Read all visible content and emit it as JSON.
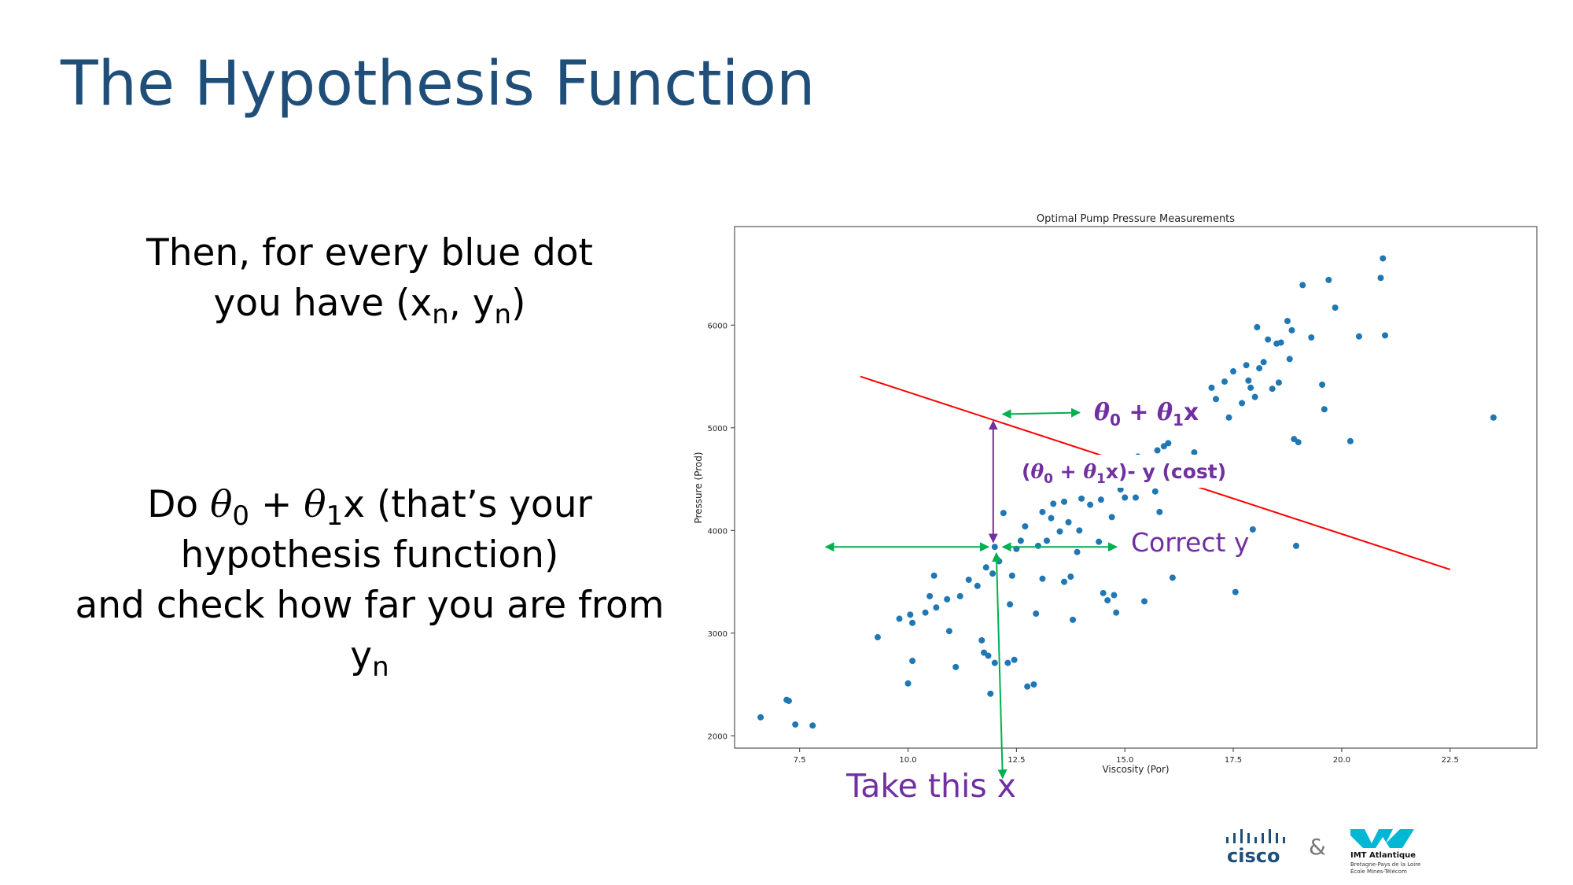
{
  "slide": {
    "title": "The Hypothesis Function",
    "para1": {
      "line1": "Then, for every blue dot",
      "line2_pre": "you have (x",
      "sub_n": "n",
      "line2_mid": ", y",
      "line2_post": ")"
    },
    "para2": {
      "do": "Do ",
      "theta": "θ",
      "sub0": "0",
      "plus": " + ",
      "sub1": "1",
      "rest": "x (that’s your",
      "line2": "hypothesis function)",
      "line3": "and check how far you are from",
      "y": "y"
    }
  },
  "annotations": {
    "hyp": {
      "theta": "θ",
      "sub0": "0",
      "plus": " + ",
      "sub1": "1",
      "x": "x"
    },
    "cost": {
      "open": "(",
      "theta": "θ",
      "sub0": "0",
      "plus": " + ",
      "sub1": "1",
      "close": "x)- y (cost)"
    },
    "correct_y": "Correct y",
    "take_x": "Take this x",
    "colors": {
      "purple": "#7030a0",
      "green": "#00b050",
      "red": "#ff0000",
      "dot": "#1f77b4"
    }
  },
  "logos": {
    "cisco": "cisco",
    "amp": "&",
    "imt_name": "IMT Atlantique",
    "imt_line1": "Bretagne-Pays de la Loire",
    "imt_line2": "École Mines-Télécom"
  },
  "chart_data": {
    "type": "scatter",
    "title": "Optimal Pump Pressure Measurements",
    "xlabel": "Viscosity (Por)",
    "ylabel": "Pressure (Prod)",
    "xlim": [
      6.0,
      24.5
    ],
    "ylim": [
      1880,
      6960
    ],
    "xticks": [
      "7.5",
      "10.0",
      "12.5",
      "15.0",
      "17.5",
      "20.0",
      "22.5"
    ],
    "yticks": [
      "2000",
      "3000",
      "4000",
      "5000",
      "6000"
    ],
    "grid": false,
    "hypothesis_line": {
      "x": [
        8.9,
        22.5
      ],
      "y": [
        5500,
        3620
      ]
    },
    "highlight_point": {
      "x": 12.0,
      "y": 3840,
      "hyp_y": 5110
    },
    "points": [
      [
        6.6,
        2180
      ],
      [
        7.2,
        2350
      ],
      [
        7.25,
        2340
      ],
      [
        7.4,
        2110
      ],
      [
        7.8,
        2100
      ],
      [
        9.3,
        2960
      ],
      [
        9.8,
        3140
      ],
      [
        10.0,
        2510
      ],
      [
        10.1,
        2730
      ],
      [
        10.05,
        3180
      ],
      [
        10.1,
        3100
      ],
      [
        10.4,
        3200
      ],
      [
        10.5,
        3360
      ],
      [
        10.6,
        3560
      ],
      [
        10.65,
        3250
      ],
      [
        10.9,
        3330
      ],
      [
        10.95,
        3020
      ],
      [
        11.1,
        2670
      ],
      [
        11.2,
        3360
      ],
      [
        11.4,
        3520
      ],
      [
        11.6,
        3460
      ],
      [
        11.7,
        2930
      ],
      [
        11.75,
        2810
      ],
      [
        11.8,
        3640
      ],
      [
        11.85,
        2780
      ],
      [
        11.9,
        2410
      ],
      [
        11.95,
        3580
      ],
      [
        12.0,
        2710
      ],
      [
        12.05,
        3720
      ],
      [
        12.1,
        3700
      ],
      [
        12.2,
        4170
      ],
      [
        12.3,
        2710
      ],
      [
        12.35,
        3280
      ],
      [
        12.4,
        3560
      ],
      [
        12.45,
        2740
      ],
      [
        12.5,
        3820
      ],
      [
        12.6,
        3900
      ],
      [
        12.7,
        4040
      ],
      [
        12.75,
        2480
      ],
      [
        12.9,
        2500
      ],
      [
        12.95,
        3190
      ],
      [
        13.0,
        3850
      ],
      [
        13.1,
        3530
      ],
      [
        13.1,
        4180
      ],
      [
        13.2,
        3900
      ],
      [
        13.3,
        4120
      ],
      [
        13.35,
        4260
      ],
      [
        13.5,
        3990
      ],
      [
        13.6,
        4280
      ],
      [
        13.6,
        3500
      ],
      [
        13.7,
        4080
      ],
      [
        13.75,
        3550
      ],
      [
        13.8,
        3130
      ],
      [
        13.9,
        3790
      ],
      [
        13.95,
        4000
      ],
      [
        14.0,
        4310
      ],
      [
        14.2,
        4250
      ],
      [
        14.4,
        3890
      ],
      [
        14.45,
        4300
      ],
      [
        14.5,
        3390
      ],
      [
        14.6,
        3320
      ],
      [
        14.7,
        4130
      ],
      [
        14.75,
        3370
      ],
      [
        14.8,
        3200
      ],
      [
        14.9,
        4400
      ],
      [
        15.0,
        4320
      ],
      [
        15.1,
        4450
      ],
      [
        15.25,
        4320
      ],
      [
        15.3,
        4720
      ],
      [
        15.45,
        3310
      ],
      [
        15.5,
        4580
      ],
      [
        15.6,
        4460
      ],
      [
        15.7,
        4380
      ],
      [
        15.75,
        4780
      ],
      [
        15.8,
        4180
      ],
      [
        15.9,
        4820
      ],
      [
        16.0,
        4850
      ],
      [
        16.05,
        4500
      ],
      [
        16.1,
        3540
      ],
      [
        16.3,
        4590
      ],
      [
        16.6,
        4760
      ],
      [
        16.8,
        5100
      ],
      [
        17.0,
        5390
      ],
      [
        17.1,
        5280
      ],
      [
        17.3,
        5450
      ],
      [
        17.4,
        5100
      ],
      [
        17.5,
        5550
      ],
      [
        17.55,
        3400
      ],
      [
        17.7,
        5240
      ],
      [
        17.8,
        5610
      ],
      [
        17.85,
        5460
      ],
      [
        17.9,
        5390
      ],
      [
        17.95,
        4010
      ],
      [
        18.0,
        5300
      ],
      [
        18.05,
        5980
      ],
      [
        18.1,
        5580
      ],
      [
        18.2,
        5640
      ],
      [
        18.3,
        5860
      ],
      [
        18.4,
        5380
      ],
      [
        18.5,
        5820
      ],
      [
        18.55,
        5440
      ],
      [
        18.6,
        5830
      ],
      [
        18.75,
        6040
      ],
      [
        18.8,
        5670
      ],
      [
        18.85,
        5950
      ],
      [
        18.9,
        4890
      ],
      [
        18.95,
        3850
      ],
      [
        19.0,
        4860
      ],
      [
        19.1,
        6390
      ],
      [
        19.3,
        5880
      ],
      [
        19.55,
        5420
      ],
      [
        19.6,
        5180
      ],
      [
        19.7,
        6440
      ],
      [
        19.85,
        6170
      ],
      [
        20.2,
        4870
      ],
      [
        20.4,
        5890
      ],
      [
        20.9,
        6460
      ],
      [
        20.95,
        6650
      ],
      [
        21.0,
        5900
      ],
      [
        23.5,
        5100
      ]
    ]
  }
}
